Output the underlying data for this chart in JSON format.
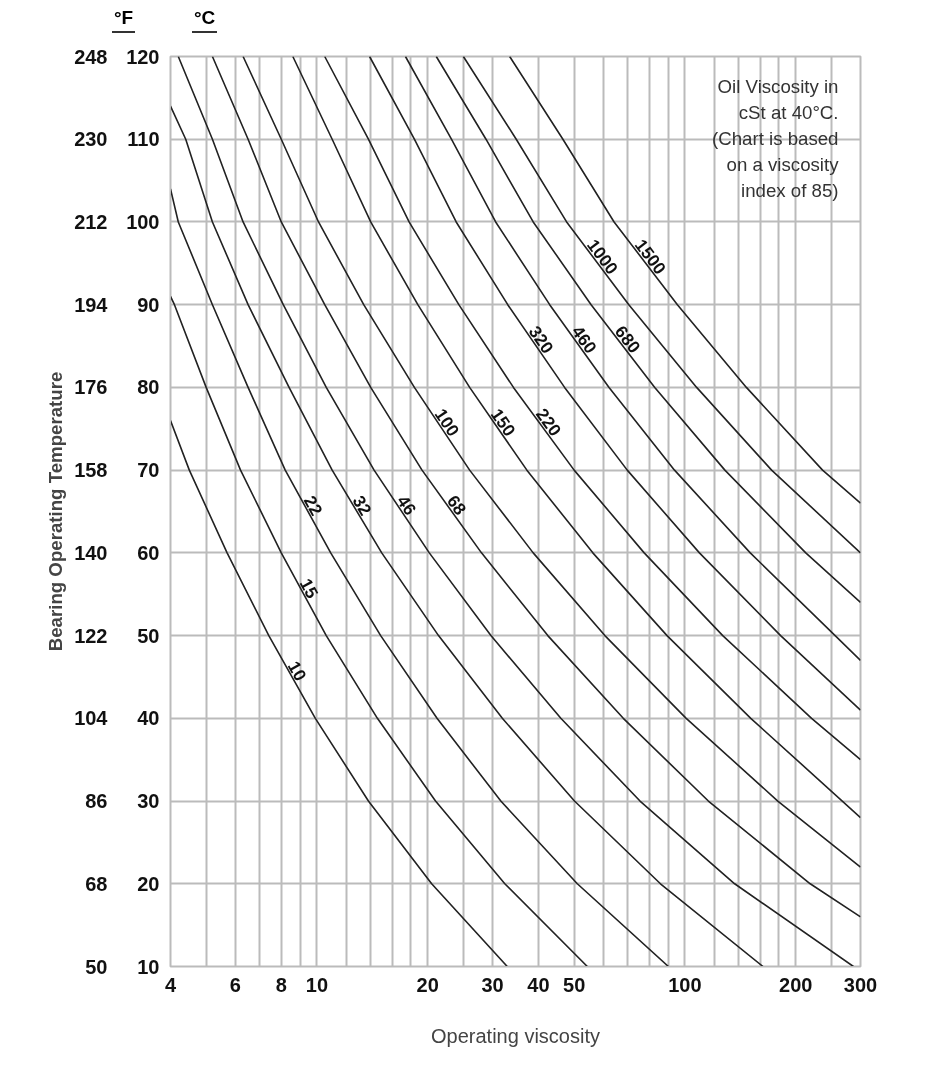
{
  "chart_data": {
    "type": "line",
    "xlabel": "Operating viscosity",
    "ylabel": "Bearing Operating Temperature",
    "y2label": "°C",
    "annotations": [
      "°F",
      "Oil Viscosity in cSt at 40°C.",
      "(Chart is based on a viscosity index of 85)"
    ],
    "log": "x",
    "grid": true,
    "xlim": [
      4,
      300
    ],
    "xticks": [
      4,
      {
        "value": 5,
        "label": null
      },
      6,
      {
        "value": 7,
        "label": null
      },
      8,
      {
        "value": 9,
        "label": null
      },
      10,
      {
        "value": 12,
        "label": null
      },
      {
        "value": 14,
        "label": null
      },
      {
        "value": 16,
        "label": null
      },
      {
        "value": 18,
        "label": null
      },
      20,
      {
        "value": 25,
        "label": null
      },
      30,
      40,
      50,
      {
        "value": 60,
        "label": null
      },
      {
        "value": 70,
        "label": null
      },
      {
        "value": 80,
        "label": null
      },
      {
        "value": 90,
        "label": null
      },
      100,
      {
        "value": 120,
        "label": null
      },
      {
        "value": 140,
        "label": null
      },
      {
        "value": 160,
        "label": null
      },
      {
        "value": 180,
        "label": null
      },
      200,
      {
        "value": 250,
        "label": null
      },
      300
    ],
    "ylim": [
      50,
      248
    ],
    "yticks": [
      50,
      68,
      86,
      104,
      122,
      140,
      158,
      176,
      194,
      212,
      230,
      248
    ],
    "y2lim": [
      10,
      120
    ],
    "y2ticks": [
      10,
      20,
      30,
      40,
      50,
      60,
      70,
      80,
      90,
      100,
      110,
      120
    ],
    "series": [
      {
        "name": "10",
        "axis": "y2",
        "color": "#222222",
        "x": [
          4,
          4.5,
          5.7,
          7.4,
          9.9,
          13.8,
          20.5,
          32.9
        ],
        "values": [
          76,
          70,
          60,
          50,
          40,
          30,
          20,
          10
        ]
      },
      {
        "name": "15",
        "axis": "y2",
        "color": "#222222",
        "x": [
          4,
          4.1,
          5.0,
          6.2,
          8.0,
          10.6,
          14.6,
          21.0,
          32.4,
          54.3
        ],
        "values": [
          91,
          90,
          80,
          70,
          60,
          50,
          40,
          30,
          20,
          10
        ]
      },
      {
        "name": "22",
        "axis": "y2",
        "color": "#222222",
        "x": [
          4,
          4.2,
          5.2,
          6.5,
          8.2,
          10.9,
          14.9,
          21.2,
          31.6,
          51.0,
          90.2
        ],
        "values": [
          104,
          100,
          90,
          80,
          70,
          60,
          50,
          40,
          30,
          20,
          10
        ]
      },
      {
        "name": "32",
        "axis": "y2",
        "color": "#222222",
        "x": [
          4,
          4.4,
          5.2,
          6.5,
          8.4,
          11.0,
          15.0,
          21.4,
          31.9,
          50.1,
          85.8,
          163
        ],
        "values": [
          114,
          110,
          100,
          90,
          80,
          70,
          60,
          50,
          40,
          30,
          20,
          10
        ]
      },
      {
        "name": "46",
        "axis": "y2",
        "color": "#222222",
        "x": [
          4.2,
          5.2,
          6.3,
          8.1,
          10.6,
          14.3,
          20.2,
          29.7,
          46.0,
          75.5,
          136.5,
          287
        ],
        "values": [
          120,
          110,
          100,
          90,
          80,
          70,
          60,
          50,
          40,
          30,
          20,
          10
        ]
      },
      {
        "name": "68",
        "axis": "y2",
        "color": "#222222",
        "x": [
          5.2,
          6.5,
          8.0,
          10.5,
          14.0,
          19.3,
          28.0,
          42.4,
          68.0,
          115.8,
          219,
          300
        ],
        "values": [
          120,
          110,
          100,
          90,
          80,
          70,
          60,
          50,
          40,
          30,
          20,
          16
        ]
      },
      {
        "name": "100",
        "axis": "y2",
        "color": "#222222",
        "x": [
          6.3,
          8.0,
          10.1,
          13.4,
          18.4,
          26.0,
          38.7,
          60.6,
          100.8,
          178.8,
          300
        ],
        "values": [
          120,
          110,
          100,
          90,
          80,
          70,
          60,
          50,
          40,
          30,
          22
        ]
      },
      {
        "name": "150",
        "axis": "y2",
        "color": "#222222",
        "x": [
          8.6,
          11.0,
          14.0,
          18.8,
          26.0,
          37.2,
          56.2,
          89.4,
          151,
          300
        ],
        "values": [
          120,
          110,
          100,
          90,
          80,
          70,
          60,
          50,
          40,
          28
        ]
      },
      {
        "name": "220",
        "axis": "y2",
        "color": "#222222",
        "x": [
          10.5,
          13.8,
          17.8,
          24.3,
          34.2,
          50.0,
          77.5,
          126.7,
          220.9,
          300
        ],
        "values": [
          120,
          110,
          100,
          90,
          80,
          70,
          60,
          50,
          40,
          35
        ]
      },
      {
        "name": "320",
        "axis": "y2",
        "color": "#222222",
        "x": [
          13.9,
          18.4,
          23.9,
          33.0,
          47.1,
          69.7,
          109.5,
          182,
          300
        ],
        "values": [
          120,
          110,
          100,
          90,
          80,
          70,
          60,
          50,
          41
        ]
      },
      {
        "name": "460",
        "axis": "y2",
        "color": "#222222",
        "x": [
          17.4,
          23.2,
          30.6,
          42.9,
          62.2,
          93.7,
          150.5,
          256,
          300
        ],
        "values": [
          120,
          110,
          100,
          90,
          80,
          70,
          60,
          50,
          47
        ]
      },
      {
        "name": "680",
        "axis": "y2",
        "color": "#222222",
        "x": [
          21.1,
          28.8,
          38.7,
          55.6,
          82.8,
          128.4,
          213,
          300
        ],
        "values": [
          120,
          110,
          100,
          90,
          80,
          70,
          60,
          54
        ]
      },
      {
        "name": "1000",
        "axis": "y2",
        "color": "#222222",
        "x": [
          25.0,
          34.8,
          47.7,
          70.4,
          107.6,
          172,
          300
        ],
        "values": [
          120,
          110,
          100,
          90,
          80,
          70,
          60
        ]
      },
      {
        "name": "1500",
        "axis": "y2",
        "color": "#222222",
        "x": [
          33.4,
          46.6,
          64.2,
          95.4,
          146.9,
          236.6,
          300
        ],
        "values": [
          120,
          110,
          100,
          90,
          80,
          70,
          66
        ]
      }
    ]
  }
}
